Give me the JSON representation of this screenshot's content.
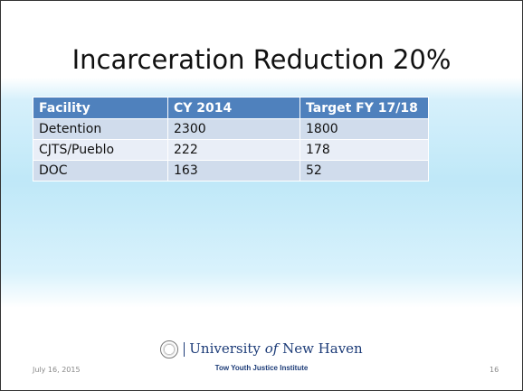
{
  "header": {
    "title": "Incarceration Reduction 20%"
  },
  "table": {
    "columns": [
      "Facility",
      "CY 2014",
      "Target FY 17/18"
    ],
    "rows": [
      [
        "Detention",
        2300,
        1800
      ],
      [
        "CJTS/Pueblo",
        222,
        178
      ],
      [
        "DOC",
        163,
        52
      ]
    ]
  },
  "footer": {
    "date": "July 16, 2015",
    "logo": [
      "University",
      "of",
      "New Haven"
    ],
    "institute": "Tow Youth Justice Institute",
    "page": "16"
  }
}
